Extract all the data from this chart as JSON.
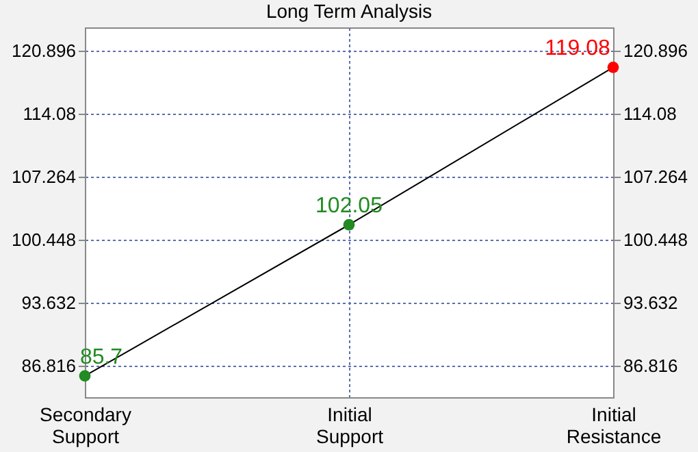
{
  "chart_data": {
    "type": "line",
    "title": "Long Term Analysis",
    "categories": [
      "Secondary Support",
      "Initial Support",
      "Initial Resistance"
    ],
    "values": [
      85.7,
      102.05,
      119.08
    ],
    "colors": [
      "#228b22",
      "#228b22",
      "#ff0000"
    ],
    "ylim": [
      83.4,
      123.4
    ],
    "yticks": [
      86.816,
      93.632,
      100.448,
      107.264,
      114.08,
      120.896
    ],
    "y2lim": [
      83.4,
      123.4
    ],
    "y2ticks": [
      86.816,
      93.632,
      100.448,
      107.264,
      114.08,
      120.896
    ],
    "data_labels": true,
    "grid": true,
    "marker": "circle",
    "line_style": "solid"
  }
}
